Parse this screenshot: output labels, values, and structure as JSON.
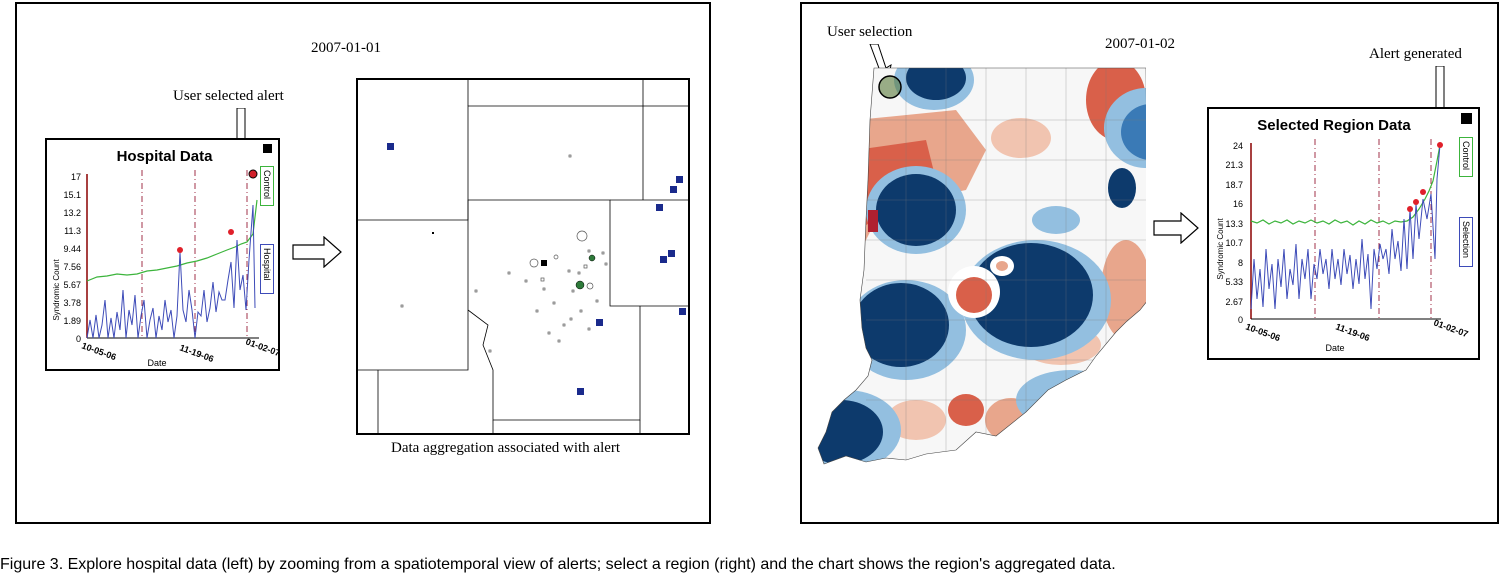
{
  "left_panel": {
    "date": "2007-01-01",
    "annotation": "User selected alert",
    "hospital_chart": {
      "title": "Hospital Data",
      "ylabel": "Syndromic Count",
      "xlabel": "Date",
      "yticks": [
        "17",
        "15.1",
        "13.2",
        "11.3",
        "9.44",
        "7.56",
        "5.67",
        "3.78",
        "1.89",
        "0"
      ],
      "xticks": [
        "10-05-06",
        "11-19-06",
        "01-02-07"
      ],
      "legend": [
        "Control",
        "Hospital"
      ]
    },
    "map_caption": "Data aggregation associated with alert"
  },
  "right_panel": {
    "date": "2007-01-02",
    "annotation_selection": "User selection",
    "annotation_alert": "Alert generated",
    "region_chart": {
      "title": "Selected Region Data",
      "ylabel": "Syndromic Count",
      "xlabel": "Date",
      "yticks": [
        "24",
        "21.3",
        "18.7",
        "16",
        "13.3",
        "10.7",
        "8",
        "5.33",
        "2.67",
        "0"
      ],
      "xticks": [
        "10-05-06",
        "11-19-06",
        "01-02-07"
      ],
      "legend": [
        "Control",
        "Selection"
      ]
    }
  },
  "caption": "Figure 3. Explore hospital data (left) by zooming from a spatiotemporal view of alerts; select a region (right) and the chart shows the region's aggregated data."
}
